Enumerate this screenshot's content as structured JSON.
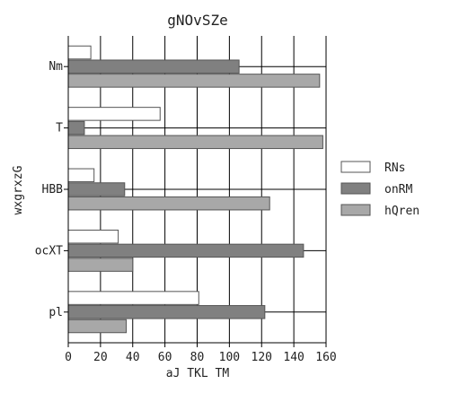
{
  "chart_data": {
    "type": "bar",
    "orientation": "horizontal",
    "title": "gNOvSZe",
    "xlabel": "aJ TKL TM",
    "ylabel": "wxgrxzG",
    "categories": [
      "Nm",
      "T",
      "HBB",
      "ocXT",
      "pl"
    ],
    "series": [
      {
        "name": "RNs",
        "values": [
          14,
          57,
          16,
          31,
          81
        ],
        "color": "#ffffff"
      },
      {
        "name": "onRM",
        "values": [
          106,
          10,
          35,
          146,
          122
        ],
        "color": "#808080"
      },
      {
        "name": "hQren",
        "values": [
          156,
          158,
          125,
          40,
          36
        ],
        "color": "#a8a8a8"
      }
    ],
    "xlim": [
      0,
      160
    ],
    "xticks": [
      0,
      20,
      40,
      60,
      80,
      100,
      120,
      140,
      160
    ],
    "grid": {
      "x": true,
      "y": true
    },
    "legend": "right"
  }
}
